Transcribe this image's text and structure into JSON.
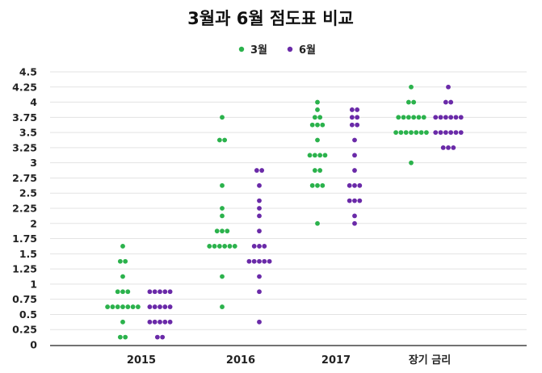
{
  "chart_data": {
    "type": "scatter",
    "title": "3월과 6월 점도표 비교",
    "xlabel": "",
    "ylabel": "",
    "categories": [
      "2015",
      "2016",
      "2017",
      "장기 금리"
    ],
    "yticks": [
      "0",
      "0.25",
      "0.5",
      "0.75",
      "1",
      "1.25",
      "1.5",
      "1.75",
      "2",
      "2.25",
      "2.5",
      "2.75",
      "3",
      "3.25",
      "3.5",
      "3.75",
      "4",
      "4.25",
      "4.5"
    ],
    "ylim": [
      0,
      4.5
    ],
    "grid": true,
    "legend_position": "top-center",
    "series": [
      {
        "name": "3월",
        "color": "#2bb24c",
        "points": {
          "2015": [
            [
              0.125,
              2
            ],
            [
              0.375,
              1
            ],
            [
              0.625,
              7
            ],
            [
              0.875,
              3
            ],
            [
              1.125,
              1
            ],
            [
              1.375,
              2
            ],
            [
              1.625,
              1
            ]
          ],
          "2016": [
            [
              0.625,
              1
            ],
            [
              1.125,
              1
            ],
            [
              1.625,
              6
            ],
            [
              1.875,
              3
            ],
            [
              2.125,
              1
            ],
            [
              2.25,
              1
            ],
            [
              2.625,
              1
            ],
            [
              3.375,
              2
            ],
            [
              3.75,
              1
            ]
          ],
          "2017": [
            [
              2.0,
              1
            ],
            [
              2.625,
              3
            ],
            [
              2.875,
              2
            ],
            [
              3.125,
              4
            ],
            [
              3.375,
              1
            ],
            [
              3.625,
              3
            ],
            [
              3.75,
              2
            ],
            [
              3.875,
              1
            ],
            [
              4.0,
              1
            ]
          ],
          "장기 금리": [
            [
              3.0,
              1
            ],
            [
              3.5,
              7
            ],
            [
              3.75,
              6
            ],
            [
              4.0,
              2
            ],
            [
              4.25,
              1
            ]
          ]
        }
      },
      {
        "name": "6월",
        "color": "#6a2aa8",
        "points": {
          "2015": [
            [
              0.125,
              2
            ],
            [
              0.375,
              5
            ],
            [
              0.625,
              5
            ],
            [
              0.875,
              5
            ]
          ],
          "2016": [
            [
              0.375,
              1
            ],
            [
              0.875,
              1
            ],
            [
              1.125,
              1
            ],
            [
              1.375,
              5
            ],
            [
              1.625,
              3
            ],
            [
              1.875,
              1
            ],
            [
              2.125,
              1
            ],
            [
              2.25,
              1
            ],
            [
              2.375,
              1
            ],
            [
              2.625,
              1
            ],
            [
              2.875,
              2
            ]
          ],
          "2017": [
            [
              2.0,
              1
            ],
            [
              2.125,
              1
            ],
            [
              2.375,
              3
            ],
            [
              2.625,
              3
            ],
            [
              2.875,
              1
            ],
            [
              3.125,
              1
            ],
            [
              3.375,
              1
            ],
            [
              3.625,
              2
            ],
            [
              3.75,
              2
            ],
            [
              3.875,
              2
            ]
          ],
          "장기 금리": [
            [
              3.25,
              3
            ],
            [
              3.5,
              6
            ],
            [
              3.75,
              6
            ],
            [
              4.0,
              2
            ],
            [
              4.25,
              1
            ]
          ]
        }
      }
    ]
  }
}
